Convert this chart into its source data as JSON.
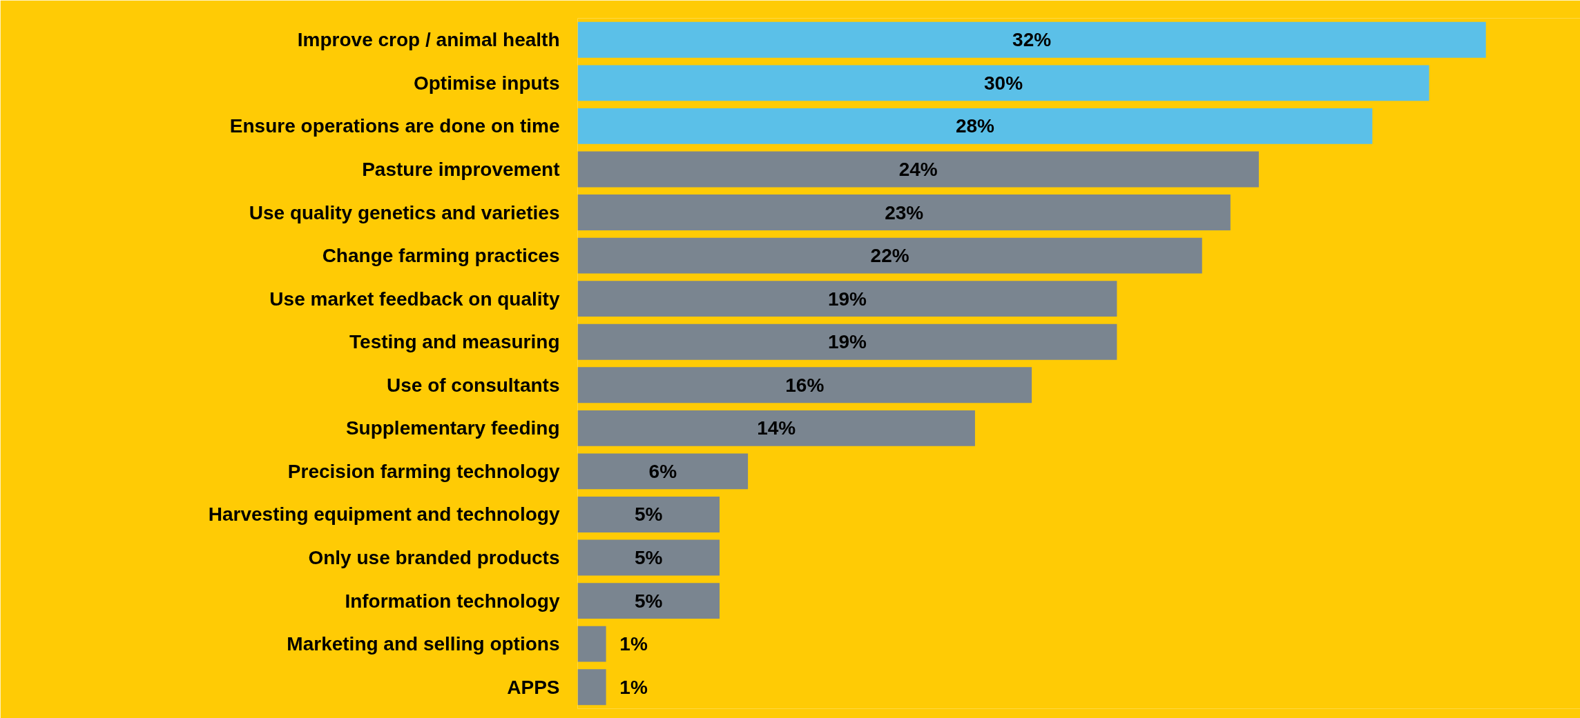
{
  "chart_data": {
    "type": "bar",
    "orientation": "horizontal",
    "grid": false,
    "categories": [
      "Improve crop / animal health",
      "Optimise inputs",
      "Ensure operations are done on time",
      "Pasture improvement",
      "Use quality genetics and varieties",
      "Change farming practices",
      "Use market feedback on quality",
      "Testing and measuring",
      "Use of consultants",
      "Supplementary feeding",
      "Precision farming technology",
      "Harvesting equipment and technology",
      "Only use branded products",
      "Information technology",
      "Marketing and selling options",
      "APPS"
    ],
    "values": [
      32,
      30,
      28,
      24,
      23,
      22,
      19,
      19,
      16,
      14,
      6,
      5,
      5,
      5,
      1,
      1
    ],
    "value_labels": [
      "32%",
      "30%",
      "28%",
      "24%",
      "23%",
      "22%",
      "19%",
      "19%",
      "16%",
      "14%",
      "6%",
      "5%",
      "5%",
      "5%",
      "1%",
      "1%"
    ],
    "colors": [
      "#5bc0e8",
      "#5bc0e8",
      "#5bc0e8",
      "#7a8590",
      "#7a8590",
      "#7a8590",
      "#7a8590",
      "#7a8590",
      "#7a8590",
      "#7a8590",
      "#7a8590",
      "#7a8590",
      "#7a8590",
      "#7a8590",
      "#7a8590",
      "#7a8590"
    ]
  }
}
